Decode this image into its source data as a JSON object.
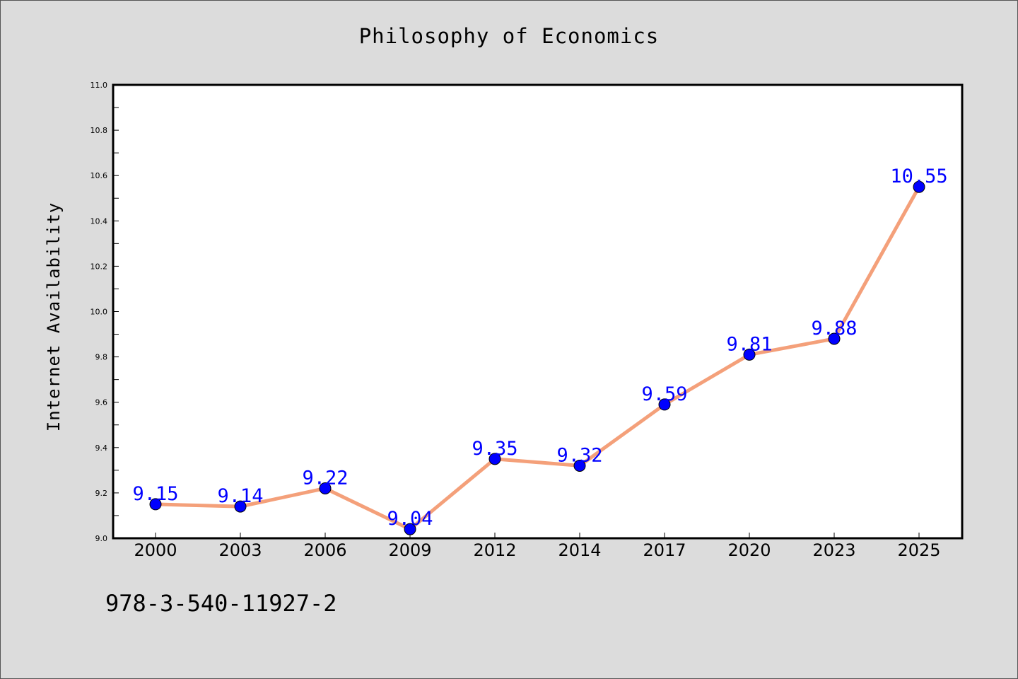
{
  "chart_data": {
    "type": "line",
    "title": "Philosophy of Economics",
    "xlabel": "",
    "ylabel": "Internet Availability",
    "categories": [
      "2000",
      "2003",
      "2006",
      "2009",
      "2012",
      "2014",
      "2017",
      "2020",
      "2023",
      "2025"
    ],
    "series": [
      {
        "values": [
          9.15,
          9.14,
          9.22,
          9.04,
          9.35,
          9.32,
          9.59,
          9.81,
          9.88,
          10.55
        ],
        "data_labels": [
          "9.15",
          "9.14",
          "9.22",
          "9.04",
          "9.35",
          "9.32",
          "9.59",
          "9.81",
          "9.88",
          "10.55"
        ],
        "line_color": "#f4a07a",
        "marker_color": "#0000ff"
      }
    ],
    "ylim": [
      9.0,
      11.0
    ],
    "yticks": [
      "9.0",
      "9.2",
      "9.4",
      "9.6",
      "9.8",
      "10.0",
      "10.2",
      "10.4",
      "10.6",
      "10.8",
      "11.0"
    ],
    "grid": false
  },
  "footer": {
    "isbn": "978-3-540-11927-2"
  },
  "colors": {
    "background": "#dcdcdc",
    "plot_background": "#ffffff",
    "label_color": "#0000ff"
  }
}
